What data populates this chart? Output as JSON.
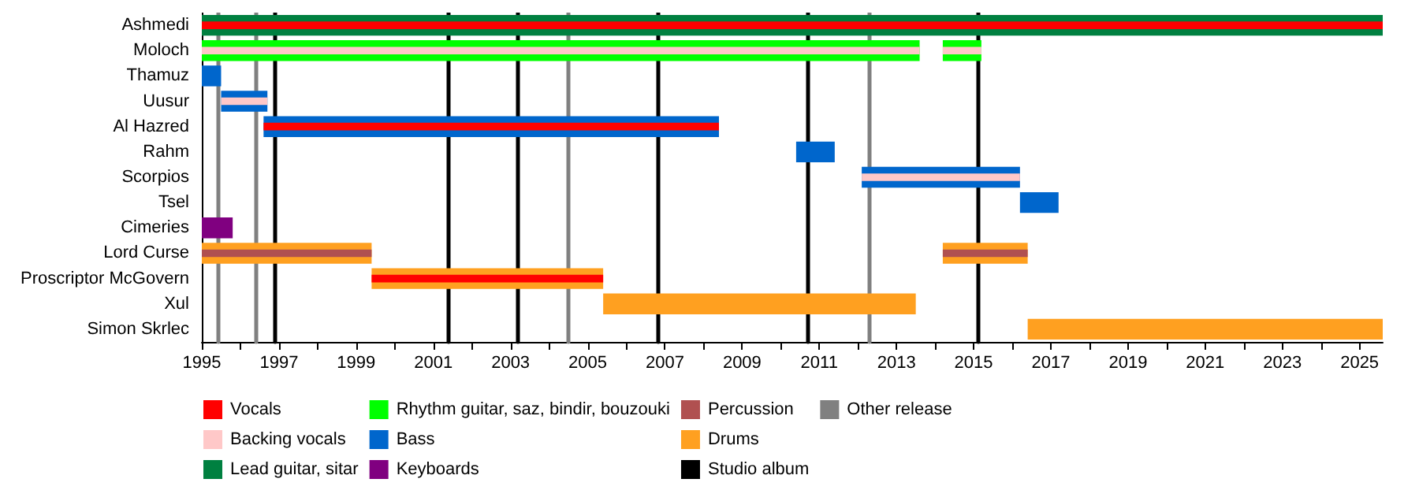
{
  "chart_data": {
    "type": "bar",
    "orientation": "horizontal",
    "categories": [
      "Ashmedi",
      "Moloch",
      "Thamuz",
      "Uusur",
      "Al Hazred",
      "Rahm",
      "Scorpios",
      "Tsel",
      "Cimeries",
      "Lord Curse",
      "Proscriptor McGovern",
      "Xul",
      "Simon Skrlec"
    ],
    "series": [
      {
        "name": "Vocals",
        "color": "#ff0000",
        "base": [
          1995,
          null,
          null,
          null,
          1996.6,
          null,
          null,
          null,
          null,
          null,
          1999.4,
          null,
          null
        ],
        "values": [
          30.6,
          null,
          null,
          null,
          11.8,
          null,
          null,
          null,
          null,
          null,
          6.0,
          null,
          null
        ]
      },
      {
        "name": "Backing vocals",
        "color": "#ffc8c8",
        "base": [
          null,
          1995,
          null,
          1995.5,
          null,
          null,
          2012.1,
          null,
          null,
          null,
          null,
          null,
          null
        ],
        "values": [
          null,
          18.6,
          null,
          1.2,
          null,
          null,
          4.1,
          null,
          null,
          null,
          null,
          null,
          null
        ]
      },
      {
        "color": "#ffc8c8",
        "base": [
          null,
          2014.2,
          null,
          null,
          null,
          null,
          null,
          null,
          null,
          null,
          null,
          null,
          null
        ],
        "values": [
          null,
          1.0,
          null,
          null,
          null,
          null,
          null,
          null,
          null,
          null,
          null,
          null,
          null
        ]
      },
      {
        "name": "Lead guitar, sitar",
        "color": "#008040",
        "base": [
          1995,
          null,
          null,
          null,
          null,
          null,
          null,
          null,
          null,
          null,
          null,
          null,
          null
        ],
        "values": [
          30.6,
          null,
          null,
          null,
          null,
          null,
          null,
          null,
          null,
          null,
          null,
          null,
          null
        ]
      },
      {
        "name": "Rhythm guitar, saz, bindir, bouzouki",
        "color": "#00ff00",
        "base": [
          null,
          1995,
          null,
          null,
          null,
          null,
          null,
          null,
          null,
          null,
          null,
          null,
          null
        ],
        "values": [
          null,
          18.6,
          null,
          null,
          null,
          null,
          null,
          null,
          null,
          null,
          null,
          null,
          null
        ]
      },
      {
        "color": "#00ff00",
        "base": [
          null,
          2014.2,
          null,
          null,
          null,
          null,
          null,
          null,
          null,
          null,
          null,
          null,
          null
        ],
        "values": [
          null,
          1.0,
          null,
          null,
          null,
          null,
          null,
          null,
          null,
          null,
          null,
          null,
          null
        ]
      },
      {
        "name": "Bass",
        "color": "#0066cc",
        "base": [
          null,
          null,
          1995,
          1995.5,
          1996.6,
          2010.4,
          2012.1,
          2016.2,
          null,
          null,
          null,
          null,
          null
        ],
        "values": [
          null,
          null,
          0.5,
          1.2,
          11.8,
          1.0,
          4.1,
          1.0,
          null,
          null,
          null,
          null,
          null
        ]
      },
      {
        "name": "Keyboards",
        "color": "#800080",
        "base": [
          null,
          null,
          null,
          null,
          null,
          null,
          null,
          null,
          1995,
          null,
          null,
          null,
          null
        ],
        "values": [
          null,
          null,
          null,
          null,
          null,
          null,
          null,
          null,
          0.8,
          null,
          null,
          null,
          null
        ]
      },
      {
        "name": "Percussion",
        "color": "#b05050",
        "base": [
          null,
          null,
          null,
          null,
          null,
          null,
          null,
          null,
          null,
          1995,
          null,
          null,
          null
        ],
        "values": [
          null,
          null,
          null,
          null,
          null,
          null,
          null,
          null,
          null,
          4.4,
          null,
          null,
          null
        ]
      },
      {
        "color": "#b05050",
        "base": [
          null,
          null,
          null,
          null,
          null,
          null,
          null,
          null,
          null,
          2014.2,
          null,
          null,
          null
        ],
        "values": [
          null,
          null,
          null,
          null,
          null,
          null,
          null,
          null,
          null,
          2.2,
          null,
          null,
          null
        ]
      },
      {
        "name": "Drums",
        "color": "#ffa020",
        "base": [
          null,
          null,
          null,
          null,
          null,
          null,
          null,
          null,
          null,
          1995,
          1999.4,
          2005.4,
          2016.4
        ],
        "values": [
          null,
          null,
          null,
          null,
          null,
          null,
          null,
          null,
          null,
          4.4,
          6.0,
          8.1,
          9.2
        ]
      },
      {
        "color": "#ffa020",
        "base": [
          null,
          null,
          null,
          null,
          null,
          null,
          null,
          null,
          null,
          2014.2,
          null,
          null,
          null
        ],
        "values": [
          null,
          null,
          null,
          null,
          null,
          null,
          null,
          null,
          null,
          2.2,
          null,
          null,
          null
        ]
      }
    ],
    "xlim": [
      1995,
      2025.6
    ],
    "xticks": [
      1995,
      {
        "value": 1996,
        "label": null
      },
      1997,
      {
        "value": 1998,
        "label": null
      },
      1999,
      {
        "value": 2000,
        "label": null
      },
      2001,
      {
        "value": 2002,
        "label": null
      },
      2003,
      {
        "value": 2004,
        "label": null
      },
      2005,
      {
        "value": 2006,
        "label": null
      },
      2007,
      {
        "value": 2008,
        "label": null
      },
      2009,
      {
        "value": 2010,
        "label": null
      },
      2011,
      {
        "value": 2012,
        "label": null
      },
      2013,
      {
        "value": 2014,
        "label": null
      },
      2015,
      {
        "value": 2016,
        "label": null
      },
      2017,
      {
        "value": 2018,
        "label": null
      },
      2019,
      {
        "value": 2020,
        "label": null
      },
      2021,
      {
        "value": 2022,
        "label": null
      },
      2023,
      {
        "value": 2024,
        "label": null
      },
      2025
    ],
    "ref_lines": [
      {
        "axis": "x",
        "value": 1996.9,
        "label": "Studio album",
        "color": "#000000"
      },
      {
        "axis": "x",
        "value": 2001.4,
        "label": null,
        "color": "#000000"
      },
      {
        "axis": "x",
        "value": 2003.2,
        "label": null,
        "color": "#000000"
      },
      {
        "axis": "x",
        "value": 2006.8,
        "label": null,
        "color": "#000000"
      },
      {
        "axis": "x",
        "value": 2010.7,
        "label": null,
        "color": "#000000"
      },
      {
        "axis": "x",
        "value": 2015.1,
        "label": null,
        "color": "#000000"
      },
      {
        "axis": "x",
        "value": 1995.4,
        "label": "Other release",
        "color": "#808080"
      },
      {
        "axis": "x",
        "value": 1996.4,
        "label": null,
        "color": "#808080"
      },
      {
        "axis": "x",
        "value": 2004.5,
        "label": null,
        "color": "#808080"
      },
      {
        "axis": "x",
        "value": 2012.3,
        "label": null,
        "color": "#808080"
      }
    ],
    "grid": false,
    "legend": "bottom"
  }
}
